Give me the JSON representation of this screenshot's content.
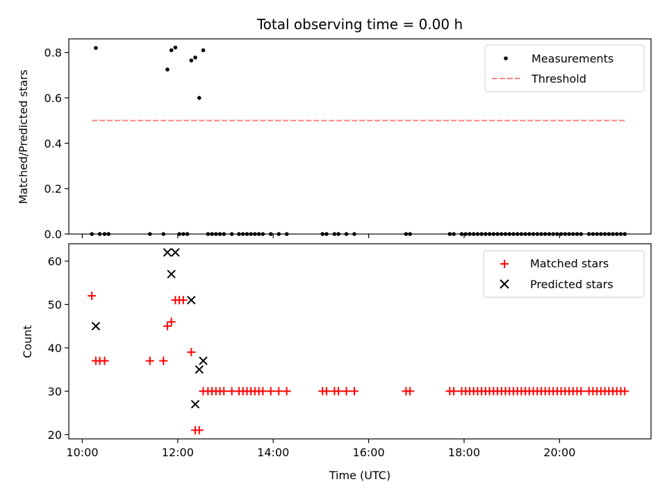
{
  "chart_data": [
    {
      "type": "scatter",
      "title": "Total observing time = 0.00 h",
      "xlabel": "",
      "ylabel": "Matched/Predicted stars",
      "ylim": [
        0,
        0.86
      ],
      "xlim": [
        "09:43",
        "21:55"
      ],
      "yticks": [
        "0.0",
        "0.2",
        "0.4",
        "0.6",
        "0.8"
      ],
      "grid": false,
      "legend": "top-right",
      "series": [
        {
          "name": "Measurements",
          "marker": "dot",
          "color": "#000000",
          "x": [
            "10:12",
            "10:17",
            "10:22",
            "10:28",
            "10:33",
            "11:25",
            "11:42",
            "11:47",
            "11:52",
            "11:57",
            "12:02",
            "12:07",
            "12:12",
            "12:17",
            "12:22",
            "12:27",
            "12:32",
            "12:38",
            "12:43",
            "12:48",
            "12:53",
            "12:58",
            "13:08",
            "13:17",
            "13:22",
            "13:27",
            "13:32",
            "13:37",
            "13:42",
            "13:47",
            "13:57",
            "14:07",
            "14:17",
            "15:02",
            "15:07",
            "15:17",
            "15:22",
            "15:32",
            "15:42",
            "16:47",
            "16:52",
            "17:42",
            "17:47",
            "17:57",
            "18:02",
            "18:07",
            "18:12",
            "18:17",
            "18:22",
            "18:27",
            "18:32",
            "18:37",
            "18:42",
            "18:47",
            "18:52",
            "18:57",
            "19:02",
            "19:07",
            "19:12",
            "19:17",
            "19:22",
            "19:27",
            "19:32",
            "19:37",
            "19:42",
            "19:47",
            "19:52",
            "19:57",
            "20:02",
            "20:07",
            "20:12",
            "20:17",
            "20:22",
            "20:27",
            "20:37",
            "20:42",
            "20:47",
            "20:52",
            "20:57",
            "21:02",
            "21:07",
            "21:12",
            "21:17",
            "21:22"
          ],
          "y": [
            0,
            0.82,
            0,
            0,
            0,
            0,
            0,
            0.725,
            0.81,
            0.822,
            0,
            0,
            0,
            0.765,
            0.778,
            0.6,
            0.81,
            0,
            0,
            0,
            0,
            0,
            0,
            0,
            0,
            0,
            0,
            0,
            0,
            0,
            0,
            0,
            0,
            0,
            0,
            0,
            0,
            0,
            0,
            0,
            0,
            0,
            0,
            0,
            0,
            0,
            0,
            0,
            0,
            0,
            0,
            0,
            0,
            0,
            0,
            0,
            0,
            0,
            0,
            0,
            0,
            0,
            0,
            0,
            0,
            0,
            0,
            0,
            0,
            0,
            0,
            0,
            0,
            0,
            0,
            0,
            0,
            0,
            0,
            0,
            0,
            0,
            0,
            0
          ]
        },
        {
          "name": "Threshold",
          "marker": "dashed-line",
          "color": "#ff7f7f",
          "x": [
            "10:12",
            "21:22"
          ],
          "y": [
            0.5,
            0.5
          ]
        }
      ]
    },
    {
      "type": "scatter",
      "title": "",
      "xlabel": "Time (UTC)",
      "ylabel": "Count",
      "ylim": [
        19,
        64
      ],
      "xlim": [
        "09:43",
        "21:55"
      ],
      "xticks": [
        "10:00",
        "12:00",
        "14:00",
        "16:00",
        "18:00",
        "20:00"
      ],
      "yticks": [
        "20",
        "30",
        "40",
        "50",
        "60"
      ],
      "grid": false,
      "legend": "top-right",
      "series": [
        {
          "name": "Matched stars",
          "marker": "plus",
          "color": "#ff0000",
          "x": [
            "10:12",
            "10:17",
            "10:22",
            "10:28",
            "11:25",
            "11:42",
            "11:47",
            "11:52",
            "11:57",
            "12:02",
            "12:07",
            "12:17",
            "12:22",
            "12:27",
            "12:32",
            "12:38",
            "12:43",
            "12:48",
            "12:53",
            "12:58",
            "13:08",
            "13:17",
            "13:22",
            "13:27",
            "13:32",
            "13:37",
            "13:42",
            "13:47",
            "13:57",
            "14:07",
            "14:17",
            "15:02",
            "15:07",
            "15:17",
            "15:22",
            "15:32",
            "15:42",
            "16:47",
            "16:52",
            "17:42",
            "17:47",
            "17:57",
            "18:02",
            "18:07",
            "18:12",
            "18:17",
            "18:22",
            "18:27",
            "18:32",
            "18:37",
            "18:42",
            "18:47",
            "18:52",
            "18:57",
            "19:02",
            "19:07",
            "19:12",
            "19:17",
            "19:22",
            "19:27",
            "19:32",
            "19:37",
            "19:42",
            "19:47",
            "19:52",
            "19:57",
            "20:02",
            "20:07",
            "20:12",
            "20:17",
            "20:22",
            "20:27",
            "20:37",
            "20:42",
            "20:47",
            "20:52",
            "20:57",
            "21:02",
            "21:07",
            "21:12",
            "21:17",
            "21:22"
          ],
          "y": [
            52,
            37,
            37,
            37,
            37,
            37,
            45,
            46,
            51,
            51,
            51,
            39,
            21,
            21,
            30,
            30,
            30,
            30,
            30,
            30,
            30,
            30,
            30,
            30,
            30,
            30,
            30,
            30,
            30,
            30,
            30,
            30,
            30,
            30,
            30,
            30,
            30,
            30,
            30,
            30,
            30,
            30,
            30,
            30,
            30,
            30,
            30,
            30,
            30,
            30,
            30,
            30,
            30,
            30,
            30,
            30,
            30,
            30,
            30,
            30,
            30,
            30,
            30,
            30,
            30,
            30,
            30,
            30,
            30,
            30,
            30,
            30,
            30,
            30,
            30,
            30,
            30,
            30,
            30,
            30,
            30,
            30
          ]
        },
        {
          "name": "Predicted stars",
          "marker": "x",
          "color": "#000000",
          "x": [
            "10:17",
            "11:47",
            "11:52",
            "11:57",
            "12:17",
            "12:22",
            "12:27",
            "12:32"
          ],
          "y": [
            45,
            62,
            57,
            62,
            51,
            27,
            35,
            37
          ]
        }
      ]
    }
  ]
}
